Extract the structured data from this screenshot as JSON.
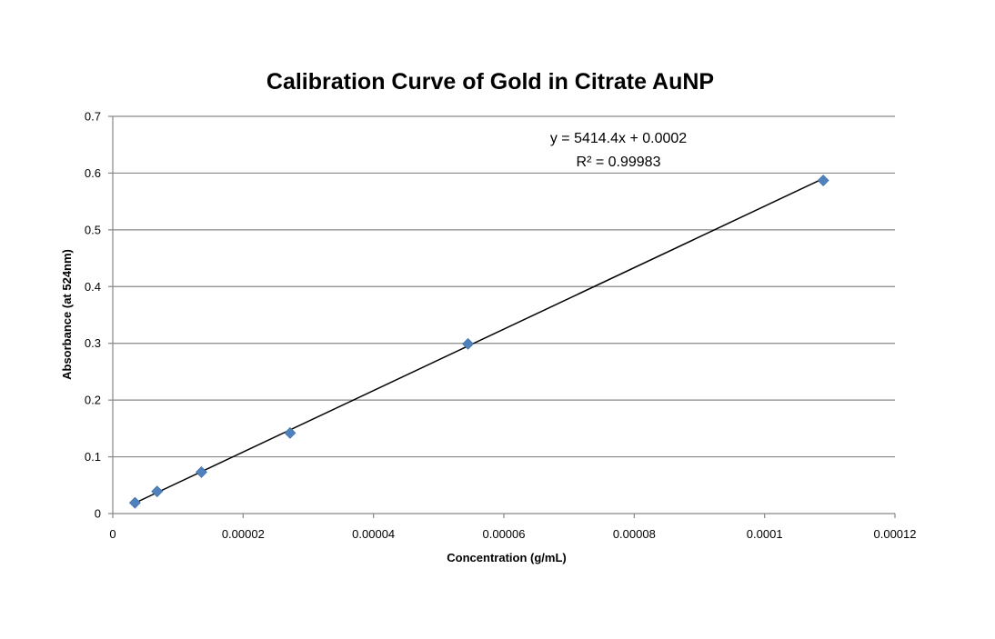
{
  "chart_data": {
    "type": "scatter",
    "title": "Calibration Curve of Gold in Citrate AuNP",
    "xlabel": "Concentration (g/mL)",
    "ylabel": "Absorbance (at 524nm)",
    "xlim": [
      0,
      0.00012
    ],
    "ylim": [
      0,
      0.7
    ],
    "x_ticks": [
      "0",
      "0.00002",
      "0.00004",
      "0.00006",
      "0.00008",
      "0.0001",
      "0.00012"
    ],
    "y_ticks": [
      "0",
      "0.1",
      "0.2",
      "0.3",
      "0.4",
      "0.5",
      "0.6",
      "0.7"
    ],
    "x_tick_values": [
      0,
      2e-05,
      4e-05,
      6e-05,
      8e-05,
      0.0001,
      0.00012
    ],
    "y_tick_values": [
      0,
      0.1,
      0.2,
      0.3,
      0.4,
      0.5,
      0.6,
      0.7
    ],
    "grid": "horizontal",
    "legend": "none",
    "points": [
      {
        "x": 3.4e-06,
        "y": 0.019
      },
      {
        "x": 6.8e-06,
        "y": 0.039
      },
      {
        "x": 1.36e-05,
        "y": 0.073
      },
      {
        "x": 2.72e-05,
        "y": 0.142
      },
      {
        "x": 5.45e-05,
        "y": 0.299
      },
      {
        "x": 0.000109,
        "y": 0.587
      }
    ],
    "trendline": {
      "slope": 5414.4,
      "intercept": 0.0002,
      "x_range": [
        3.4e-06,
        0.000109
      ],
      "equation": "y = 5414.4x + 0.0002",
      "r_squared": "R² = 0.99983"
    },
    "colors": {
      "marker": "#4f81bd",
      "line": "#000000",
      "grid": "#878787"
    }
  }
}
